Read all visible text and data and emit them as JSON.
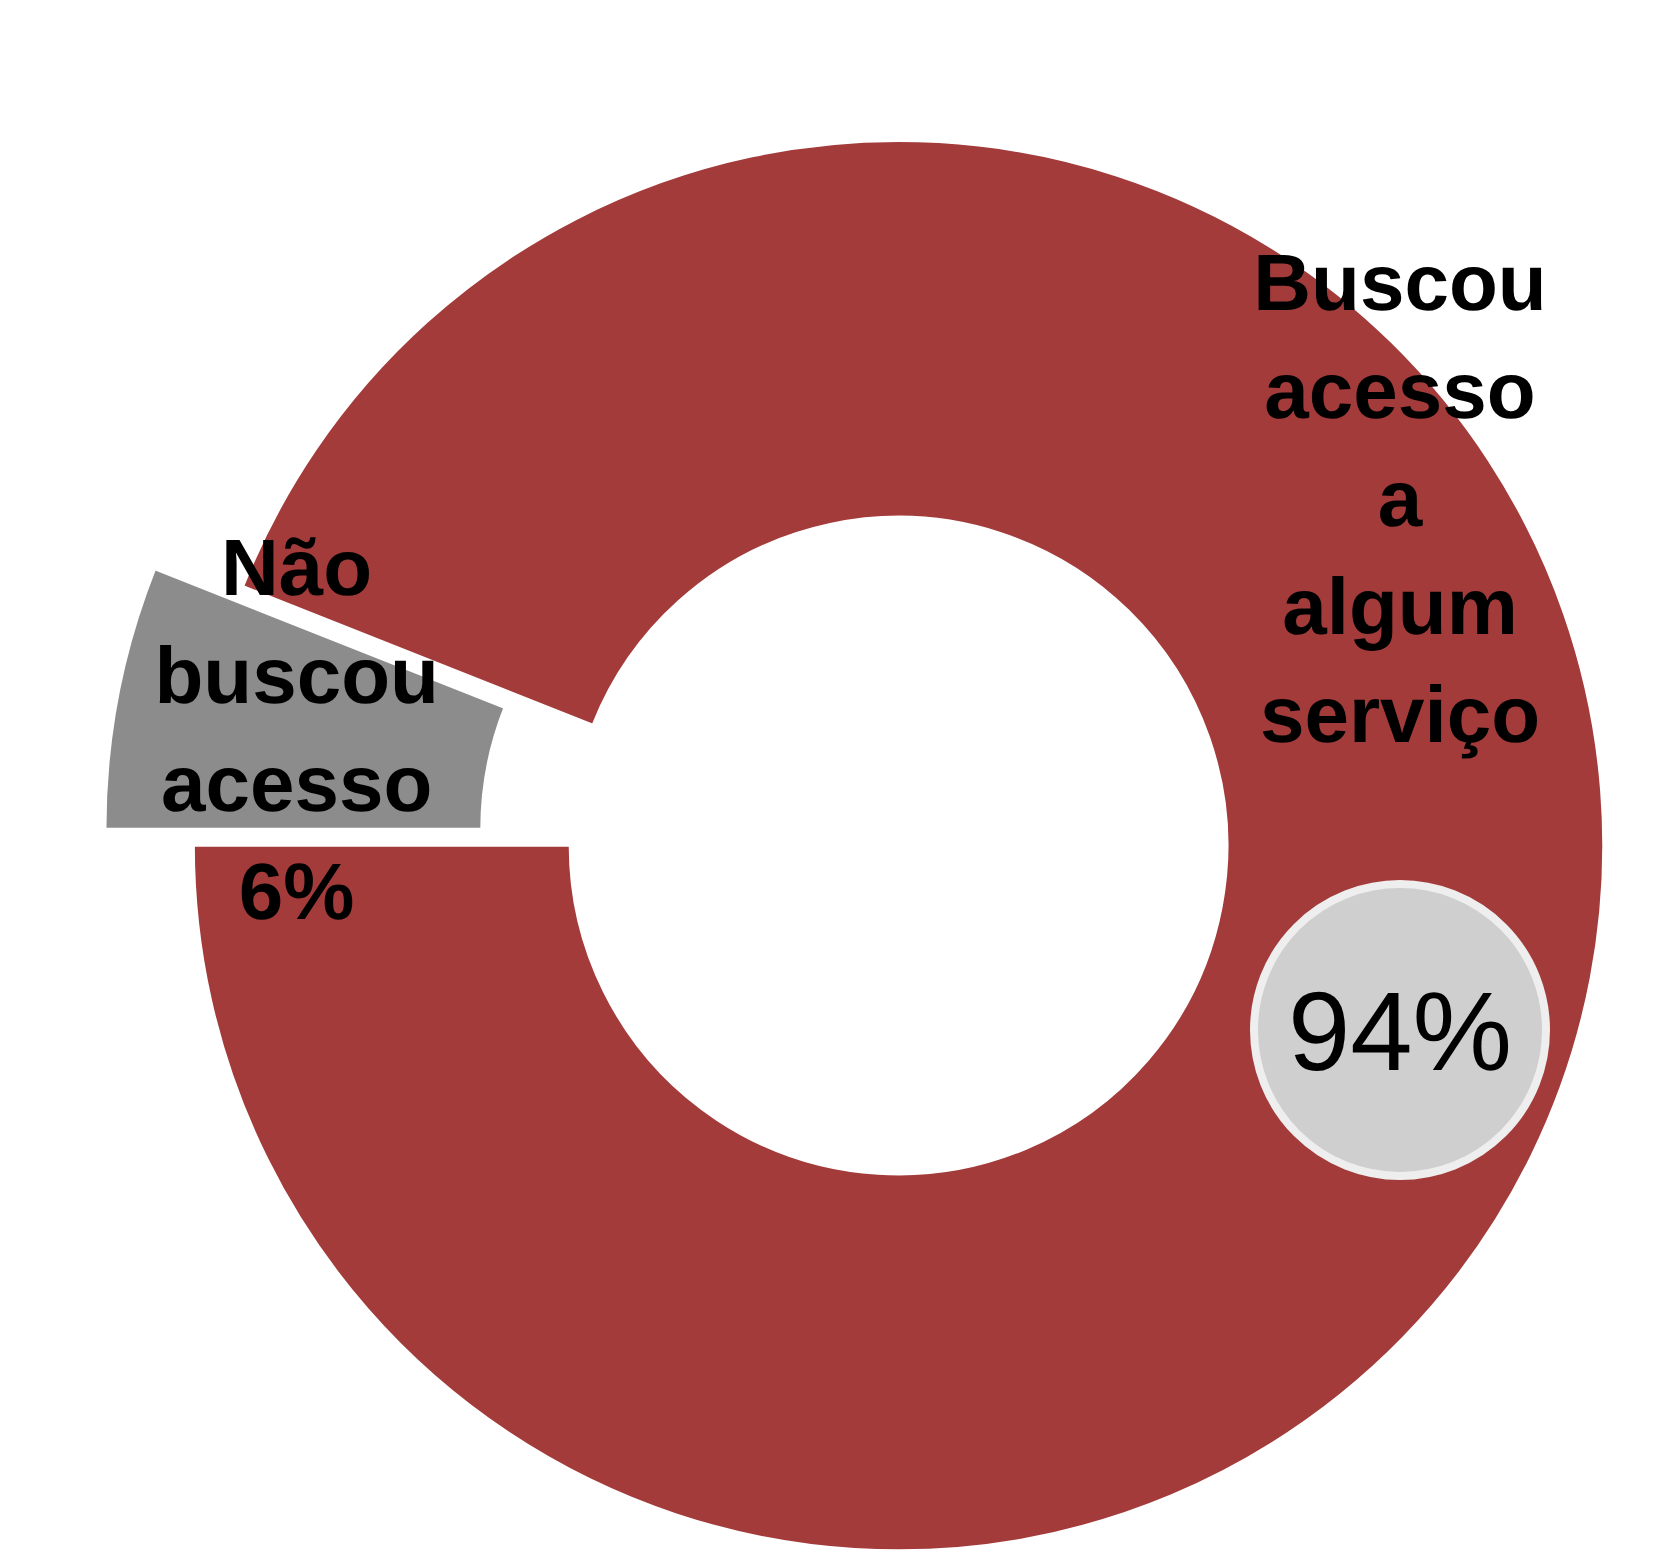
{
  "chart_data": {
    "type": "donut",
    "categories": [
      "Não buscou acesso",
      "Buscou acesso a algum serviço"
    ],
    "values": [
      6,
      94
    ],
    "colors": [
      "#8c8c8c",
      "#a33b3b"
    ],
    "value_labels": [
      "6%",
      "94%"
    ],
    "legend": false
  }
}
